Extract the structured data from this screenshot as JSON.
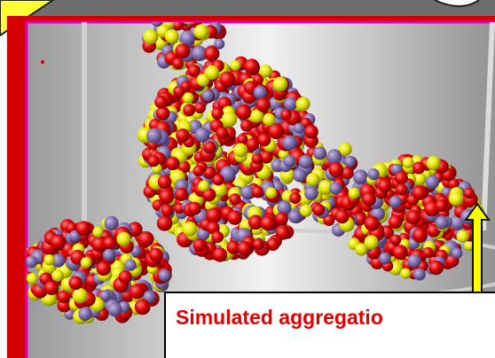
{
  "caption": {
    "text": "Simulated aggregatio"
  }
}
